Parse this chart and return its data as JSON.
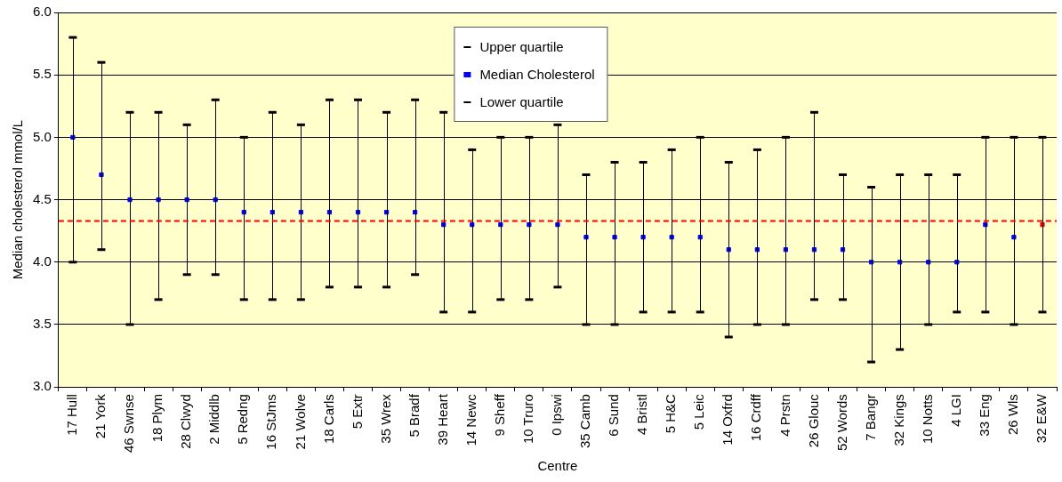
{
  "chart_data": {
    "type": "scatter",
    "xlabel": "Centre",
    "ylabel": "Median cholesterol mmol/L",
    "categories": [
      "17 Hull",
      "21 York",
      "46 Swnse",
      "18 Plym",
      "28 Clwyd",
      "2 Middlb",
      "5 Redng",
      "16 StJms",
      "21 Wolve",
      "18 Carls",
      "5 Extr",
      "35 Wrex",
      "5 Bradf",
      "39 Heart",
      "14 Newc",
      "9 Sheff",
      "10 Truro",
      "0 Ipswi",
      "35 Camb",
      "6 Sund",
      "4 Bristl",
      "5 H&C",
      "5 Leic",
      "14 Oxfrd",
      "16 Crdff",
      "4 Prstn",
      "26 Glouc",
      "52 Words",
      "7 Bangr",
      "32 Kings",
      "10 Notts",
      "4 LGI",
      "33 Eng",
      "26 Wls",
      "32 E&W"
    ],
    "series": [
      {
        "name": "Upper quartile",
        "color": "#000000",
        "values": [
          5.8,
          5.6,
          5.2,
          5.2,
          5.1,
          5.3,
          5.0,
          5.2,
          5.1,
          5.3,
          5.3,
          5.2,
          5.3,
          5.2,
          4.9,
          5.0,
          5.0,
          5.1,
          4.7,
          4.8,
          4.8,
          4.9,
          5.0,
          4.8,
          4.9,
          5.0,
          5.2,
          4.7,
          4.6,
          4.7,
          4.7,
          4.7,
          5.0,
          5.0,
          5.0
        ]
      },
      {
        "name": "Median Cholesterol",
        "color": "#0000ff",
        "marker": "square",
        "colors": [
          "#0000ff",
          "#0000ff",
          "#0000ff",
          "#0000ff",
          "#0000ff",
          "#0000ff",
          "#0000ff",
          "#0000ff",
          "#0000ff",
          "#0000ff",
          "#0000ff",
          "#0000ff",
          "#0000ff",
          "#0000ff",
          "#0000ff",
          "#0000ff",
          "#0000ff",
          "#0000ff",
          "#0000ff",
          "#0000ff",
          "#0000ff",
          "#0000ff",
          "#0000ff",
          "#0000ff",
          "#0000ff",
          "#0000ff",
          "#0000ff",
          "#0000ff",
          "#0000ff",
          "#0000ff",
          "#0000ff",
          "#0000ff",
          "#0000ff",
          "#0000ff",
          "#ff0000"
        ],
        "values": [
          5.0,
          4.7,
          4.5,
          4.5,
          4.5,
          4.5,
          4.4,
          4.4,
          4.4,
          4.4,
          4.4,
          4.4,
          4.4,
          4.3,
          4.3,
          4.3,
          4.3,
          4.3,
          4.2,
          4.2,
          4.2,
          4.2,
          4.2,
          4.1,
          4.1,
          4.1,
          4.1,
          4.1,
          4.0,
          4.0,
          4.0,
          4.0,
          4.3,
          4.2,
          4.3
        ]
      },
      {
        "name": "Lower quartile",
        "color": "#000000",
        "values": [
          4.0,
          4.1,
          3.5,
          3.7,
          3.9,
          3.9,
          3.7,
          3.7,
          3.7,
          3.8,
          3.8,
          3.8,
          3.9,
          3.6,
          3.6,
          3.7,
          3.7,
          3.8,
          3.5,
          3.5,
          3.6,
          3.6,
          3.6,
          3.4,
          3.5,
          3.5,
          3.7,
          3.7,
          3.2,
          3.3,
          3.5,
          3.6,
          3.6,
          3.5,
          3.6
        ]
      }
    ],
    "ylim": [
      3,
      6
    ],
    "yticks": [
      {
        "value": 3,
        "label": "3.0"
      },
      {
        "value": 3.5,
        "label": "3.5"
      },
      {
        "value": 4,
        "label": "4.0"
      },
      {
        "value": 4.5,
        "label": "4.5"
      },
      {
        "value": 5,
        "label": "5.0"
      },
      {
        "value": 5.5,
        "label": "5.5"
      },
      {
        "value": 6,
        "label": "6.0"
      }
    ],
    "grid": "y",
    "legend": "top",
    "ref_lines": [
      {
        "axis": "y",
        "value": 4.33,
        "color": "#ff0000",
        "line_style": "dashed"
      }
    ]
  }
}
